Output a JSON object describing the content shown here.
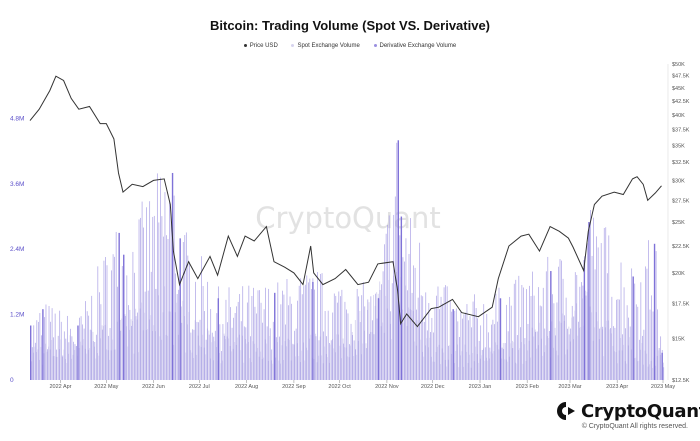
{
  "chart_data": {
    "type": "bar",
    "title": "Bitcoin: Trading Volume (Spot VS. Derivative)",
    "legend": [
      "Price USD",
      "Spot Exchange Volume",
      "Derivative Exchange Volume"
    ],
    "legend_placement": "top-center",
    "grid": false,
    "watermark": "CryptoQuant",
    "x_start": "2022-03-12",
    "x_end": "2023-05-01",
    "x_ticks": [
      {
        "date": "2022-04-01",
        "label": "2022 Apr"
      },
      {
        "date": "2022-05-01",
        "label": "2022 May"
      },
      {
        "date": "2022-06-01",
        "label": "2022 Jun"
      },
      {
        "date": "2022-07-01",
        "label": "2022 Jul"
      },
      {
        "date": "2022-08-01",
        "label": "2022 Aug"
      },
      {
        "date": "2022-09-01",
        "label": "2022 Sep"
      },
      {
        "date": "2022-10-01",
        "label": "2022 Oct"
      },
      {
        "date": "2022-11-01",
        "label": "2022 Nov"
      },
      {
        "date": "2022-12-01",
        "label": "2022 Dec"
      },
      {
        "date": "2023-01-01",
        "label": "2023 Jan"
      },
      {
        "date": "2023-02-01",
        "label": "2023 Feb"
      },
      {
        "date": "2023-03-01",
        "label": "2023 Mar"
      },
      {
        "date": "2023-04-01",
        "label": "2023 Apr"
      },
      {
        "date": "2023-05-01",
        "label": "2023 May"
      }
    ],
    "y_left": {
      "ylim": [
        0,
        5800000
      ],
      "ticks": [
        {
          "value": 0,
          "label": "0"
        },
        {
          "value": 1200000,
          "label": "1.2M"
        },
        {
          "value": 2400000,
          "label": "2.4M"
        },
        {
          "value": 3600000,
          "label": "3.6M"
        },
        {
          "value": 4800000,
          "label": "4.8M"
        }
      ]
    },
    "y_right": {
      "scale": "log",
      "ylim": [
        12500,
        50000
      ],
      "ticks": [
        {
          "value": 12500,
          "label": "$12.5K"
        },
        {
          "value": 15000,
          "label": "$15K"
        },
        {
          "value": 17500,
          "label": "$17.5K"
        },
        {
          "value": 20000,
          "label": "$20K"
        },
        {
          "value": 22500,
          "label": "$22.5K"
        },
        {
          "value": 25000,
          "label": "$25K"
        },
        {
          "value": 27500,
          "label": "$27.5K"
        },
        {
          "value": 30000,
          "label": "$30K"
        },
        {
          "value": 32500,
          "label": "$32.5K"
        },
        {
          "value": 35000,
          "label": "$35K"
        },
        {
          "value": 37500,
          "label": "$37.5K"
        },
        {
          "value": 40000,
          "label": "$40K"
        },
        {
          "value": 42500,
          "label": "$42.5K"
        },
        {
          "value": 45000,
          "label": "$45K"
        },
        {
          "value": 47500,
          "label": "$47.5K"
        },
        {
          "value": 50000,
          "label": "$50K"
        }
      ]
    },
    "series": [
      {
        "name": "Price USD",
        "axis": "right",
        "kind": "line",
        "color": "#333333",
        "points": [
          [
            "2022-03-12",
            39000
          ],
          [
            "2022-03-18",
            41000
          ],
          [
            "2022-03-25",
            44500
          ],
          [
            "2022-03-29",
            47400
          ],
          [
            "2022-04-03",
            46500
          ],
          [
            "2022-04-08",
            43000
          ],
          [
            "2022-04-13",
            41000
          ],
          [
            "2022-04-20",
            41500
          ],
          [
            "2022-04-27",
            38500
          ],
          [
            "2022-05-01",
            38500
          ],
          [
            "2022-05-06",
            36000
          ],
          [
            "2022-05-09",
            31000
          ],
          [
            "2022-05-12",
            28500
          ],
          [
            "2022-05-18",
            29500
          ],
          [
            "2022-05-25",
            29200
          ],
          [
            "2022-06-01",
            30000
          ],
          [
            "2022-06-08",
            30200
          ],
          [
            "2022-06-12",
            27000
          ],
          [
            "2022-06-14",
            22000
          ],
          [
            "2022-06-18",
            19000
          ],
          [
            "2022-06-24",
            21000
          ],
          [
            "2022-06-30",
            19500
          ],
          [
            "2022-07-08",
            21500
          ],
          [
            "2022-07-13",
            19800
          ],
          [
            "2022-07-20",
            23500
          ],
          [
            "2022-07-26",
            21500
          ],
          [
            "2022-07-31",
            23500
          ],
          [
            "2022-08-06",
            23000
          ],
          [
            "2022-08-14",
            24500
          ],
          [
            "2022-08-19",
            21000
          ],
          [
            "2022-08-26",
            20500
          ],
          [
            "2022-09-01",
            20000
          ],
          [
            "2022-09-07",
            19000
          ],
          [
            "2022-09-12",
            22500
          ],
          [
            "2022-09-14",
            20000
          ],
          [
            "2022-09-20",
            19000
          ],
          [
            "2022-09-28",
            19500
          ],
          [
            "2022-10-05",
            20300
          ],
          [
            "2022-10-13",
            19000
          ],
          [
            "2022-10-20",
            19200
          ],
          [
            "2022-10-26",
            20800
          ],
          [
            "2022-11-05",
            21000
          ],
          [
            "2022-11-08",
            18500
          ],
          [
            "2022-11-10",
            16000
          ],
          [
            "2022-11-14",
            16700
          ],
          [
            "2022-11-21",
            15800
          ],
          [
            "2022-11-30",
            17100
          ],
          [
            "2022-12-05",
            17200
          ],
          [
            "2022-12-14",
            17800
          ],
          [
            "2022-12-20",
            16800
          ],
          [
            "2022-12-31",
            16500
          ],
          [
            "2023-01-09",
            17200
          ],
          [
            "2023-01-13",
            19500
          ],
          [
            "2023-01-20",
            22500
          ],
          [
            "2023-01-28",
            23500
          ],
          [
            "2023-02-02",
            23700
          ],
          [
            "2023-02-09",
            22000
          ],
          [
            "2023-02-16",
            24500
          ],
          [
            "2023-02-22",
            24000
          ],
          [
            "2023-02-28",
            23300
          ],
          [
            "2023-03-03",
            22400
          ],
          [
            "2023-03-10",
            20200
          ],
          [
            "2023-03-13",
            24000
          ],
          [
            "2023-03-17",
            27000
          ],
          [
            "2023-03-22",
            28000
          ],
          [
            "2023-03-30",
            28500
          ],
          [
            "2023-04-05",
            28200
          ],
          [
            "2023-04-11",
            30200
          ],
          [
            "2023-04-14",
            30500
          ],
          [
            "2023-04-18",
            29500
          ],
          [
            "2023-04-21",
            27500
          ],
          [
            "2023-04-26",
            28400
          ],
          [
            "2023-04-30",
            29300
          ]
        ]
      },
      {
        "name": "Spot Exchange Volume",
        "axis": "left",
        "kind": "bar",
        "color": "#d6d3ee",
        "points": [
          [
            "2022-03-12",
            800000
          ],
          [
            "2022-04-01",
            900000
          ],
          [
            "2022-05-10",
            1300000
          ],
          [
            "2022-06-13",
            2100000
          ],
          [
            "2022-07-01",
            1100000
          ],
          [
            "2022-08-01",
            900000
          ],
          [
            "2022-09-01",
            1000000
          ],
          [
            "2022-10-01",
            950000
          ],
          [
            "2022-11-09",
            2600000
          ],
          [
            "2022-12-01",
            800000
          ],
          [
            "2023-01-01",
            700000
          ],
          [
            "2023-02-01",
            1000000
          ],
          [
            "2023-03-13",
            1900000
          ],
          [
            "2023-04-01",
            1000000
          ],
          [
            "2023-05-01",
            600000
          ]
        ]
      },
      {
        "name": "Derivative Exchange Volume",
        "axis": "left",
        "kind": "bar",
        "color": "#9a8fe0",
        "points": [
          [
            "2022-03-12",
            1000000
          ],
          [
            "2022-03-20",
            1300000
          ],
          [
            "2022-04-12",
            1000000
          ],
          [
            "2022-05-09",
            2700000
          ],
          [
            "2022-05-12",
            2300000
          ],
          [
            "2022-06-13",
            3800000
          ],
          [
            "2022-06-18",
            2600000
          ],
          [
            "2022-07-13",
            1500000
          ],
          [
            "2022-08-19",
            1600000
          ],
          [
            "2022-09-13",
            1800000
          ],
          [
            "2022-10-26",
            1500000
          ],
          [
            "2022-11-08",
            4400000
          ],
          [
            "2022-11-10",
            3000000
          ],
          [
            "2022-12-14",
            1300000
          ],
          [
            "2023-01-14",
            1500000
          ],
          [
            "2023-02-16",
            2000000
          ],
          [
            "2023-03-10",
            2200000
          ],
          [
            "2023-03-13",
            2900000
          ],
          [
            "2023-04-11",
            1900000
          ],
          [
            "2023-04-25",
            2500000
          ],
          [
            "2023-04-30",
            500000
          ]
        ]
      }
    ]
  },
  "branding": {
    "logo_label": "CryptoQuant",
    "copyright": "© CryptoQuant All rights reserved."
  }
}
